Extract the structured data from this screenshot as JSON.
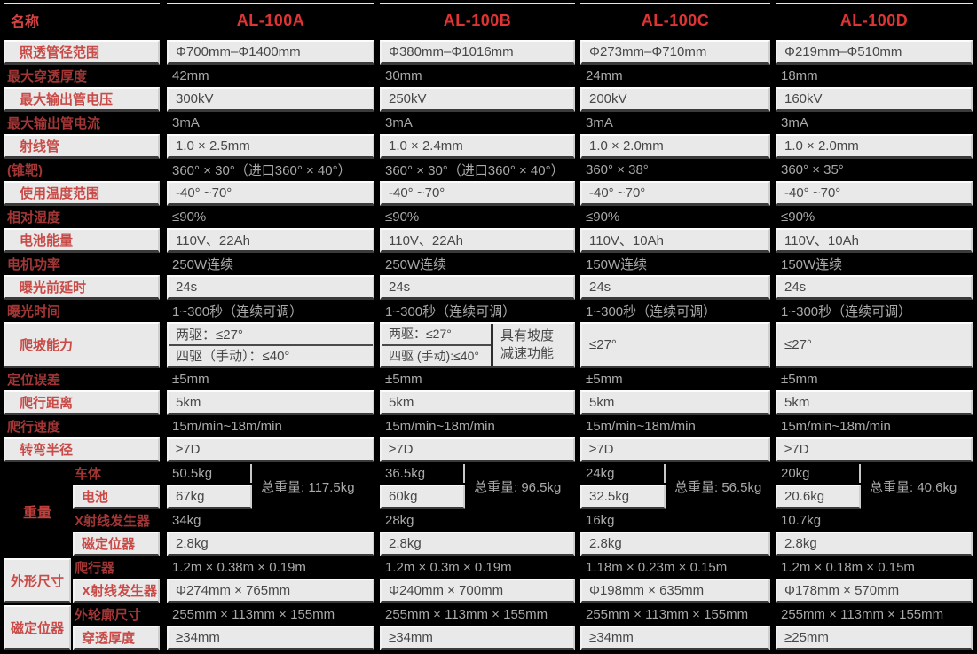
{
  "header": {
    "name_label": "名称",
    "products": [
      "AL-100A",
      "AL-100B",
      "AL-100C",
      "AL-100D"
    ]
  },
  "colors": {
    "background": "#000000",
    "light_cell_bg": "#e9e9e9",
    "light_label_red": "#c94b48",
    "dark_label_red": "#a23636",
    "header_red": "#e03434",
    "dark_value_gray": "#a9a9a9"
  },
  "table": {
    "sections": [
      {
        "kind": "simple",
        "rows": [
          {
            "shade": "light",
            "label": "照透管径范围",
            "values": [
              "Φ700mm–Φ1400mm",
              "Φ380mm–Φ1016mm",
              "Φ273mm–Φ710mm",
              "Φ219mm–Φ510mm"
            ]
          },
          {
            "shade": "dark",
            "label": "最大穿透厚度",
            "values": [
              "42mm",
              "30mm",
              "24mm",
              "18mm"
            ]
          },
          {
            "shade": "light",
            "label": "最大输出管电压",
            "values": [
              "300kV",
              "250kV",
              "200kV",
              "160kV"
            ]
          },
          {
            "shade": "dark",
            "label": "最大输出管电流",
            "values": [
              "3mA",
              "3mA",
              "3mA",
              "3mA"
            ]
          },
          {
            "shade": "light",
            "label": "射线管",
            "values": [
              "1.0 × 2.5mm",
              "1.0 × 2.4mm",
              "1.0 × 2.0mm",
              "1.0 × 2.0mm"
            ]
          },
          {
            "shade": "dark",
            "label": "(锥靶)",
            "values": [
              "360° × 30°（进口360° × 40°）",
              "360° × 30°（进口360° × 40°）",
              "360°  × 38°",
              "360°  × 35°"
            ]
          },
          {
            "shade": "light",
            "label": "使用温度范围",
            "values": [
              "-40° ~70°",
              "-40° ~70°",
              "-40° ~70°",
              "-40° ~70°"
            ]
          },
          {
            "shade": "dark",
            "label": "相对湿度",
            "values": [
              "≤90%",
              "≤90%",
              "≤90%",
              "≤90%"
            ]
          },
          {
            "shade": "light",
            "label": "电池能量",
            "values": [
              "110V、22Ah",
              "110V、22Ah",
              "110V、10Ah",
              "110V、10Ah"
            ]
          },
          {
            "shade": "dark",
            "label": "电机功率",
            "values": [
              "250W连续",
              "250W连续",
              "150W连续",
              "150W连续"
            ]
          },
          {
            "shade": "light",
            "label": "曝光前延时",
            "values": [
              "24s",
              "24s",
              "24s",
              "24s"
            ]
          },
          {
            "shade": "dark",
            "label": "曝光时间",
            "values": [
              "1~300秒（连续可调）",
              "1~300秒（连续可调）",
              "1~300秒（连续可调）",
              "1~300秒（连续可调）"
            ]
          }
        ]
      },
      {
        "kind": "climb",
        "row": {
          "label": "爬坡能力",
          "a_lines": [
            "两驱：≤27°",
            "四驱（手动）：≤40°"
          ],
          "b_lines": [
            "两驱：≤27°",
            "四驱 (手动):≤40°"
          ],
          "b_note_lines": [
            "具有坡度",
            "减速功能"
          ],
          "c": "≤27°",
          "d": "≤27°"
        }
      },
      {
        "kind": "simple",
        "rows": [
          {
            "shade": "dark",
            "label": "定位误差",
            "values": [
              "±5mm",
              "±5mm",
              "±5mm",
              "±5mm"
            ]
          },
          {
            "shade": "light",
            "label": "爬行距离",
            "values": [
              "5km",
              "5km",
              "5km",
              "5km"
            ]
          },
          {
            "shade": "dark",
            "label": "爬行速度",
            "values": [
              "15m/min~18m/min",
              "15m/min~18m/min",
              "15m/min~18m/min",
              "15m/min~18m/min"
            ]
          },
          {
            "shade": "light",
            "label": "转弯半径",
            "values": [
              "≥7D",
              "≥7D",
              "≥7D",
              "≥7D"
            ]
          }
        ]
      },
      {
        "kind": "group",
        "label": "重量",
        "label_style": "dark",
        "totals": [
          "总重量: 117.5kg",
          "总重量: 96.5kg",
          "总重量: 56.5kg",
          "总重量: 40.6kg"
        ],
        "rows": [
          {
            "shade": "dark",
            "label": "车体",
            "values": [
              "50.5kg",
              "36.5kg",
              "24kg",
              "20kg"
            ]
          },
          {
            "shade": "light",
            "label": "电池",
            "values": [
              "67kg",
              "60kg",
              "32.5kg",
              "20.6kg"
            ]
          },
          {
            "shade": "dark",
            "label": "X射线发生器",
            "values": [
              "34kg",
              "28kg",
              "16kg",
              "10.7kg"
            ]
          },
          {
            "shade": "light",
            "label": "磁定位器",
            "values": [
              "2.8kg",
              "2.8kg",
              "2.8kg",
              "2.8kg"
            ]
          }
        ]
      },
      {
        "kind": "group",
        "label": "外形尺寸",
        "label_style": "light",
        "rows": [
          {
            "shade": "dark",
            "label": "爬行器",
            "values": [
              "1.2m × 0.38m × 0.19m",
              "1.2m × 0.3m × 0.19m",
              "1.18m × 0.23m × 0.15m",
              "1.2m × 0.18m × 0.15m"
            ]
          },
          {
            "shade": "light",
            "label": "X射线发生器",
            "values": [
              "Φ274mm × 765mm",
              "Φ240mm × 700mm",
              "Φ198mm × 635mm",
              "Φ178mm × 570mm"
            ]
          }
        ]
      },
      {
        "kind": "group",
        "label": "磁定位器",
        "label_style": "light",
        "rows": [
          {
            "shade": "dark",
            "label": "外轮廓尺寸",
            "values": [
              "255mm × 113mm × 155mm",
              "255mm × 113mm × 155mm",
              "255mm × 113mm × 155mm",
              "255mm × 113mm × 155mm"
            ]
          },
          {
            "shade": "light",
            "label": "穿透厚度",
            "values": [
              "≥34mm",
              "≥34mm",
              "≥34mm",
              "≥25mm"
            ]
          }
        ]
      }
    ]
  }
}
